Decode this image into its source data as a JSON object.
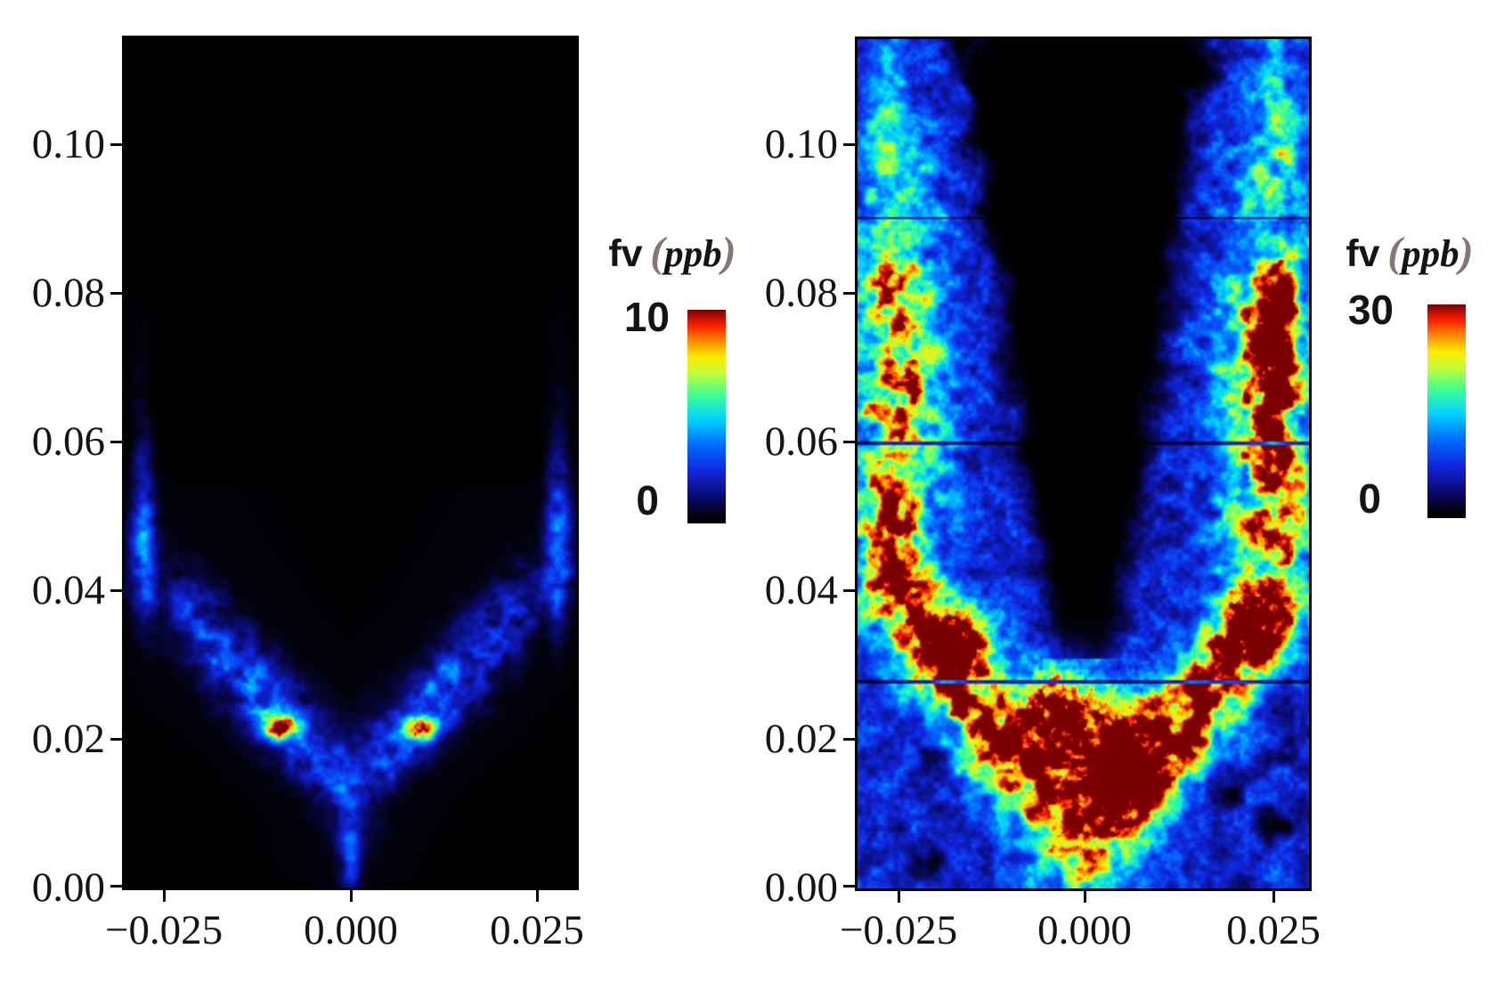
{
  "figure": {
    "background": "#ffffff",
    "axis_color": "#141414",
    "paren_color": "#8a7473",
    "colormap_stops": [
      [
        0,
        [
          0,
          0,
          0
        ]
      ],
      [
        0.04,
        [
          3,
          3,
          18
        ]
      ],
      [
        0.12,
        [
          10,
          10,
          106
        ]
      ],
      [
        0.25,
        [
          16,
          40,
          225
        ]
      ],
      [
        0.37,
        [
          0,
          110,
          255
        ]
      ],
      [
        0.49,
        [
          0,
          212,
          255
        ]
      ],
      [
        0.6,
        [
          60,
          255,
          150
        ]
      ],
      [
        0.7,
        [
          190,
          255,
          60
        ]
      ],
      [
        0.78,
        [
          255,
          235,
          0
        ]
      ],
      [
        0.86,
        [
          255,
          130,
          0
        ]
      ],
      [
        0.93,
        [
          255,
          25,
          0
        ]
      ],
      [
        1,
        [
          122,
          0,
          0
        ]
      ]
    ],
    "panels": [
      {
        "id": "left",
        "y_tick_labels": [
          "0.10",
          "0.08",
          "0.06",
          "0.04",
          "0.02",
          "0.00"
        ],
        "x_tick_labels": [
          "−0.025",
          "0.000",
          "0.025"
        ],
        "colorbar": {
          "name": "fv",
          "open_paren": "(",
          "unit": "ppb",
          "close_paren": ")",
          "top_label": "10",
          "bottom_label": "0"
        }
      },
      {
        "id": "right",
        "y_tick_labels": [
          "0.10",
          "0.08",
          "0.06",
          "0.04",
          "0.02",
          "0.00"
        ],
        "x_tick_labels": [
          "−0.025",
          "0.000",
          "0.025"
        ],
        "colorbar": {
          "name": "fv",
          "open_paren": "(",
          "unit": "ppb",
          "close_paren": ")",
          "top_label": "30",
          "bottom_label": "0"
        }
      }
    ]
  },
  "chart_data": [
    {
      "type": "heatmap",
      "panel": "left",
      "quantity": "soot volume fraction",
      "colorbar_title": "fv (ppb)",
      "colormap": "jet with black at zero",
      "xlabel": "",
      "ylabel": "",
      "x_range": [
        -0.03,
        0.03
      ],
      "y_range": [
        0,
        0.114
      ],
      "x_tick_values": [
        -0.025,
        0.0,
        0.025
      ],
      "y_tick_values": [
        0.0,
        0.02,
        0.04,
        0.06,
        0.08,
        0.1
      ],
      "value_min": 0,
      "value_max": 10,
      "colorbar_tick_values": [
        0,
        10
      ],
      "legend_position": "right of plot",
      "grid": false,
      "features": [
        "mostly black (near-zero soot) background",
        "V-shaped sooting wings rising from apex near (0, 0.002) out to (±0.025, 0.045)",
        "peak values ~10 ppb (red/orange specks) at (±0.009, 0.022)",
        "thin vertical blue-cyan streaks near x = ±0.028 between y = 0.035 and 0.06",
        "narrow blue central spike from (0,0) up to y ≈ 0.015",
        "sparse blue speckles scattered along the wings"
      ]
    },
    {
      "type": "heatmap",
      "panel": "right",
      "quantity": "soot volume fraction",
      "colorbar_title": "fv (ppb)",
      "colormap": "jet with black at zero",
      "xlabel": "",
      "ylabel": "",
      "x_range": [
        -0.03,
        0.03
      ],
      "y_range": [
        0,
        0.114
      ],
      "x_tick_values": [
        -0.025,
        0.0,
        0.025
      ],
      "y_tick_values": [
        0.0,
        0.02,
        0.04,
        0.06,
        0.08,
        0.1
      ],
      "value_min": 0,
      "value_max": 30,
      "colorbar_tick_values": [
        0,
        30
      ],
      "legend_position": "right of plot",
      "grid": false,
      "features": [
        "dense turbulent soot field filling a wide V envelope over blue 1-8 ppb background",
        "dark-red core ~30 ppb around (0.003, 0.010-0.025)",
        "red pockets at (-0.016, 0.033) and (+0.022, 0.034)",
        "red/orange patches along side columns near x = ±0.026 for y = 0.05-0.085",
        "soot-free black core in upper centre widening toward the top",
        "black speckled pockets near the bottom corners",
        "horizontal stitching seams at y ≈ 0.028, 0.060, 0.090"
      ]
    }
  ],
  "render": {
    "xmin": -0.0302,
    "xmax": 0.0302,
    "ymax": 0.1143,
    "panels": [
      {
        "mode": "sparse",
        "vmax": 10,
        "seed": 11,
        "arm_apex_y": 0.0115,
        "arm_slope": 0.83,
        "sigma0": 0.0036,
        "sigma_k": 0.06,
        "hotspots": [
          [
            -0.0095,
            0.0215,
            9.5,
            0.0023,
            0.0016
          ],
          [
            0.0092,
            0.0215,
            9.5,
            0.0023,
            0.0016
          ]
        ],
        "streak_r": 0.0277,
        "streak_y": 0.047,
        "center_spike_y": 0.006
      },
      {
        "mode": "dense",
        "vmax": 30,
        "seed": 71,
        "arm_apex_y": 0.004,
        "arm_slope": 0.73,
        "arm_rmax": 0.0248,
        "sigma": 0.0063,
        "core_start_y": 0.031,
        "core_w0": 0.0038,
        "core_wk": 0.152,
        "blobs": [
          [
            0.003,
            0.017,
            30,
            0.0075,
            0.009
          ],
          [
            -0.004,
            0.024,
            24,
            0.005,
            0.006
          ],
          [
            -0.0165,
            0.0335,
            30,
            0.0048,
            0.0048
          ],
          [
            0.0225,
            0.034,
            27,
            0.0042,
            0.0048
          ],
          [
            -0.0245,
            0.042,
            16,
            0.003,
            0.004
          ],
          [
            0.0255,
            0.071,
            24,
            0.0024,
            0.009
          ],
          [
            -0.0265,
            0.083,
            15,
            0.0022,
            0.006
          ],
          [
            -0.0255,
            0.05,
            14,
            0.0025,
            0.006
          ],
          [
            0.026,
            0.058,
            12,
            0.0022,
            0.005
          ],
          [
            0.0268,
            0.0795,
            18,
            0.002,
            0.004
          ]
        ],
        "seams": [
          0.0278,
          0.06,
          0.0902
        ]
      }
    ]
  }
}
